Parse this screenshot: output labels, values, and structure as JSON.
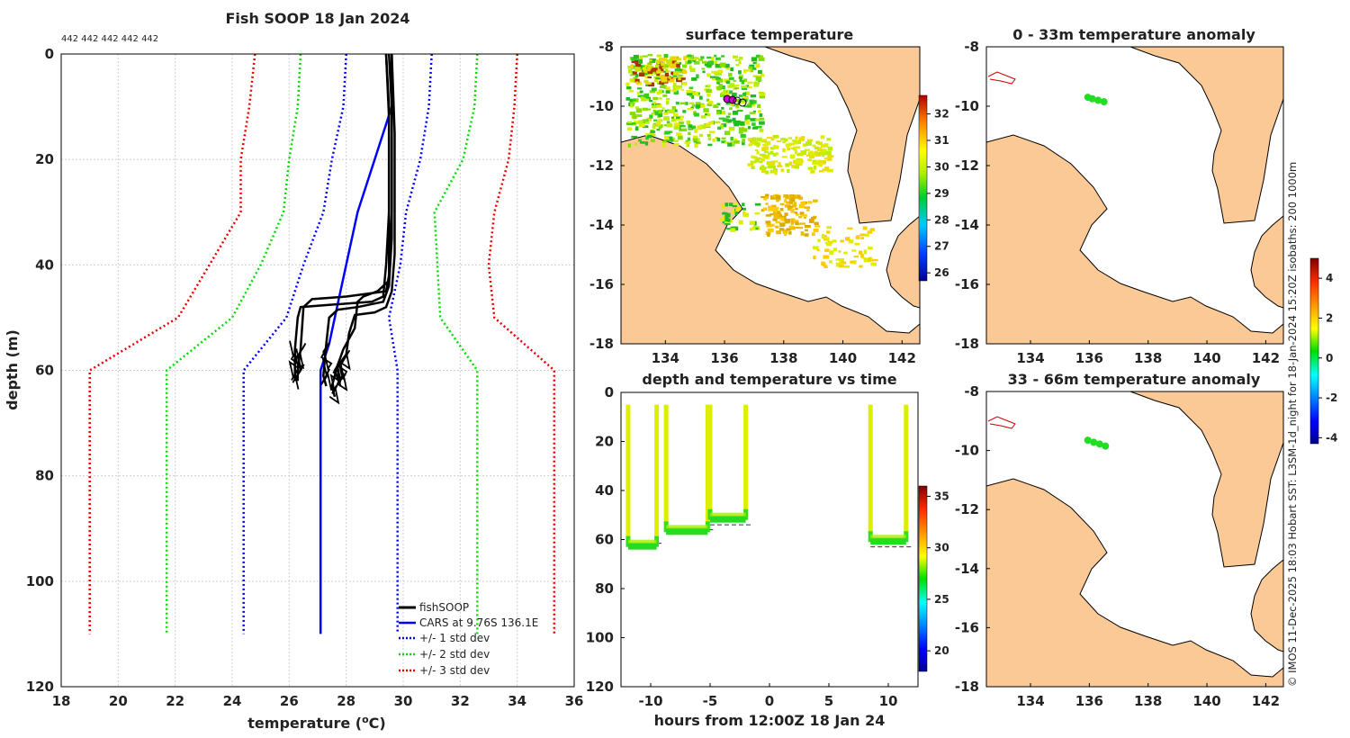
{
  "profile": {
    "title": "Fish SOOP 18 Jan 2024",
    "counts": "442 442 442 442 442",
    "xlabel": "temperature (°C)",
    "ylabel": "depth (m)",
    "legend": [
      "fishSOOP",
      "CARS at 9.76S 136.1E",
      "+/- 1 std dev",
      "+/- 2 std dev",
      "+/- 3 std dev"
    ],
    "colors": {
      "fish": "#000000",
      "cars": "#0000ff",
      "sd1": "#0000ff",
      "sd2": "#00dd00",
      "sd3": "#ee0000"
    }
  },
  "sst_map": {
    "title": "surface temperature"
  },
  "anom_map1": {
    "title": "0 - 33m temperature anomaly"
  },
  "anom_map2": {
    "title": "33 - 66m temperature anomaly"
  },
  "timeseries": {
    "title": "depth and temperature vs time",
    "xlabel": "hours from 12:00Z 18 Jan 24"
  },
  "credit": "© IMOS 11-Dec-2025 18:03 Hobart SST: L3SM-1d_night for 18-Jan-2024 15:20Z isobaths: 200  1000m",
  "colorbars": {
    "sst": [
      "26",
      "27",
      "28",
      "29",
      "30",
      "31",
      "32"
    ],
    "ts": [
      "20",
      "25",
      "30",
      "35"
    ],
    "anom": [
      "-4",
      "-2",
      "0",
      "2",
      "4"
    ]
  },
  "chart_data": [
    {
      "type": "line",
      "name": "profile",
      "title": "Fish SOOP 18 Jan 2024",
      "xlabel": "temperature (°C)",
      "ylabel": "depth (m)",
      "xlim": [
        18,
        36
      ],
      "ylim": [
        120,
        0
      ],
      "xticks": [
        18,
        20,
        22,
        24,
        26,
        28,
        30,
        32,
        34,
        36
      ],
      "yticks": [
        0,
        20,
        40,
        60,
        80,
        100,
        120
      ],
      "series": [
        {
          "name": "CARS at 9.76S 136.1E",
          "points": [
            [
              29.6,
              0
            ],
            [
              29.6,
              10
            ],
            [
              29.0,
              20
            ],
            [
              28.4,
              30
            ],
            [
              27.8,
              45
            ],
            [
              27.4,
              55
            ],
            [
              27.1,
              60
            ],
            [
              27.1,
              110
            ]
          ]
        },
        {
          "name": "-1 std dev",
          "points": [
            [
              28.0,
              0
            ],
            [
              27.9,
              10
            ],
            [
              27.5,
              20
            ],
            [
              27.2,
              30
            ],
            [
              26.5,
              40
            ],
            [
              25.9,
              50
            ],
            [
              24.4,
              60
            ],
            [
              24.4,
              110
            ]
          ]
        },
        {
          "name": "+1 std dev",
          "points": [
            [
              31.0,
              0
            ],
            [
              30.9,
              10
            ],
            [
              30.6,
              20
            ],
            [
              30.1,
              30
            ],
            [
              29.9,
              40
            ],
            [
              29.5,
              50
            ],
            [
              29.8,
              60
            ],
            [
              29.8,
              110
            ]
          ]
        },
        {
          "name": "-2 std dev",
          "points": [
            [
              26.4,
              0
            ],
            [
              26.3,
              10
            ],
            [
              26.0,
              20
            ],
            [
              25.8,
              30
            ],
            [
              25.0,
              40
            ],
            [
              24.0,
              50
            ],
            [
              21.7,
              60
            ],
            [
              21.7,
              110
            ]
          ]
        },
        {
          "name": "+2 std dev",
          "points": [
            [
              32.6,
              0
            ],
            [
              32.5,
              10
            ],
            [
              32.1,
              20
            ],
            [
              31.1,
              30
            ],
            [
              31.2,
              40
            ],
            [
              31.3,
              50
            ],
            [
              32.6,
              60
            ],
            [
              32.6,
              110
            ]
          ]
        },
        {
          "name": "-3 std dev",
          "points": [
            [
              24.8,
              0
            ],
            [
              24.6,
              10
            ],
            [
              24.3,
              20
            ],
            [
              24.3,
              30
            ],
            [
              23.2,
              40
            ],
            [
              22.1,
              50
            ],
            [
              19.0,
              60
            ],
            [
              19.0,
              110
            ]
          ]
        },
        {
          "name": "+3 std dev",
          "points": [
            [
              34.0,
              0
            ],
            [
              33.9,
              10
            ],
            [
              33.7,
              20
            ],
            [
              33.2,
              30
            ],
            [
              33.0,
              40
            ],
            [
              33.2,
              50
            ],
            [
              35.3,
              60
            ],
            [
              35.3,
              110
            ]
          ]
        },
        {
          "name": "fishSOOP",
          "casts": [
            [
              [
                29.4,
                0
              ],
              [
                29.5,
                10
              ],
              [
                29.5,
                30
              ],
              [
                29.4,
                40
              ],
              [
                29.3,
                46
              ],
              [
                28.9,
                47
              ],
              [
                27.6,
                47.5
              ],
              [
                26.4,
                48
              ],
              [
                26.3,
                50
              ],
              [
                26.2,
                56
              ],
              [
                26.2,
                60
              ],
              [
                26.2,
                62
              ]
            ],
            [
              [
                29.5,
                0
              ],
              [
                29.6,
                10
              ],
              [
                29.6,
                30
              ],
              [
                29.5,
                42
              ],
              [
                29.4,
                45
              ],
              [
                28.0,
                46
              ],
              [
                26.8,
                46.5
              ],
              [
                26.5,
                48
              ],
              [
                26.4,
                56
              ],
              [
                26.3,
                60
              ],
              [
                26.3,
                62
              ]
            ],
            [
              [
                29.6,
                0
              ],
              [
                29.6,
                10
              ],
              [
                29.6,
                35
              ],
              [
                29.5,
                44
              ],
              [
                29.3,
                47
              ],
              [
                28.4,
                48
              ],
              [
                27.7,
                48.5
              ],
              [
                27.4,
                50
              ],
              [
                27.3,
                55
              ],
              [
                27.2,
                61
              ],
              [
                27.3,
                63
              ]
            ],
            [
              [
                29.6,
                0
              ],
              [
                29.7,
                15
              ],
              [
                29.7,
                38
              ],
              [
                29.6,
                45
              ],
              [
                29.4,
                48
              ],
              [
                29.0,
                49
              ],
              [
                28.3,
                49.5
              ],
              [
                28.1,
                53
              ],
              [
                28.0,
                57
              ],
              [
                27.6,
                60
              ],
              [
                27.8,
                63
              ]
            ],
            [
              [
                29.4,
                0
              ],
              [
                29.5,
                12
              ],
              [
                29.5,
                36
              ],
              [
                29.5,
                43
              ],
              [
                29.1,
                45
              ],
              [
                28.6,
                46
              ],
              [
                28.4,
                47
              ],
              [
                28.3,
                52
              ],
              [
                27.9,
                56
              ],
              [
                27.7,
                59
              ],
              [
                27.5,
                63
              ],
              [
                27.6,
                65
              ]
            ]
          ]
        }
      ]
    },
    {
      "type": "scatter",
      "name": "depth-temperature-vs-time",
      "title": "depth and temperature vs time",
      "xlabel": "hours from 12:00Z 18 Jan 24",
      "ylabel": "",
      "xlim": [
        -12.5,
        12.5
      ],
      "ylim": [
        120,
        0
      ],
      "xticks": [
        -10,
        -5,
        0,
        5,
        10
      ],
      "yticks": [
        0,
        20,
        40,
        60,
        80,
        100,
        120
      ],
      "colorbar": {
        "range": [
          18,
          36
        ],
        "ticks": [
          20,
          25,
          30,
          35
        ]
      },
      "segments": [
        {
          "t0": -11.9,
          "t1": -9.5,
          "bottom": 63,
          "line": 61.5,
          "temp_top": 30.5,
          "temp_bottom": 27.5
        },
        {
          "t0": -8.7,
          "t1": -5.2,
          "bottom": 57,
          "line": 56,
          "temp_top": 30.5,
          "temp_bottom": 28.5
        },
        {
          "t0": -5.0,
          "t1": -2.0,
          "bottom": 52,
          "line": 54,
          "temp_top": 30.5,
          "temp_bottom": 29.5
        },
        {
          "t0": 8.5,
          "t1": 11.5,
          "bottom": 61,
          "line": 63,
          "temp_top": 30.5,
          "temp_bottom": 27.5
        }
      ]
    },
    {
      "type": "heatmap",
      "name": "surface-temperature-map",
      "title": "surface temperature",
      "xlim": [
        132.5,
        142.6
      ],
      "ylim": [
        -18,
        -8
      ],
      "xticks": [
        134,
        136,
        138,
        140,
        142
      ],
      "yticks": [
        -8,
        -10,
        -12,
        -14,
        -16,
        -18
      ],
      "colorbar": {
        "range": [
          25.7,
          32.7
        ],
        "ticks": [
          26,
          27,
          28,
          29,
          30,
          31,
          32
        ]
      },
      "tracks": [
        [
          136.0,
          -9.7
        ],
        [
          136.2,
          -9.75
        ],
        [
          136.6,
          -9.85
        ]
      ]
    },
    {
      "type": "scatter",
      "name": "anomaly-0-33m-map",
      "title": "0 - 33m temperature anomaly",
      "xlim": [
        132.5,
        142.6
      ],
      "ylim": [
        -18,
        -8
      ],
      "xticks": [
        134,
        136,
        138,
        140,
        142
      ],
      "yticks": [
        -8,
        -10,
        -12,
        -14,
        -16,
        -18
      ],
      "colorbar": {
        "range": [
          -4.3,
          5.0
        ],
        "ticks": [
          -4,
          -2,
          0,
          2,
          4
        ]
      },
      "points": [
        [
          135.95,
          -9.7,
          0.2
        ],
        [
          136.1,
          -9.75,
          0.1
        ],
        [
          136.3,
          -9.8,
          0.3
        ],
        [
          136.5,
          -9.85,
          0.0
        ]
      ]
    },
    {
      "type": "scatter",
      "name": "anomaly-33-66m-map",
      "title": "33 - 66m temperature anomaly",
      "xlim": [
        132.5,
        142.6
      ],
      "ylim": [
        -18,
        -8
      ],
      "xticks": [
        134,
        136,
        138,
        140,
        142
      ],
      "yticks": [
        -8,
        -10,
        -12,
        -14,
        -16,
        -18
      ],
      "points": [
        [
          135.95,
          -9.65,
          0.2
        ],
        [
          136.15,
          -9.72,
          0.1
        ],
        [
          136.35,
          -9.78,
          0.3
        ],
        [
          136.55,
          -9.85,
          0.0
        ]
      ]
    }
  ]
}
